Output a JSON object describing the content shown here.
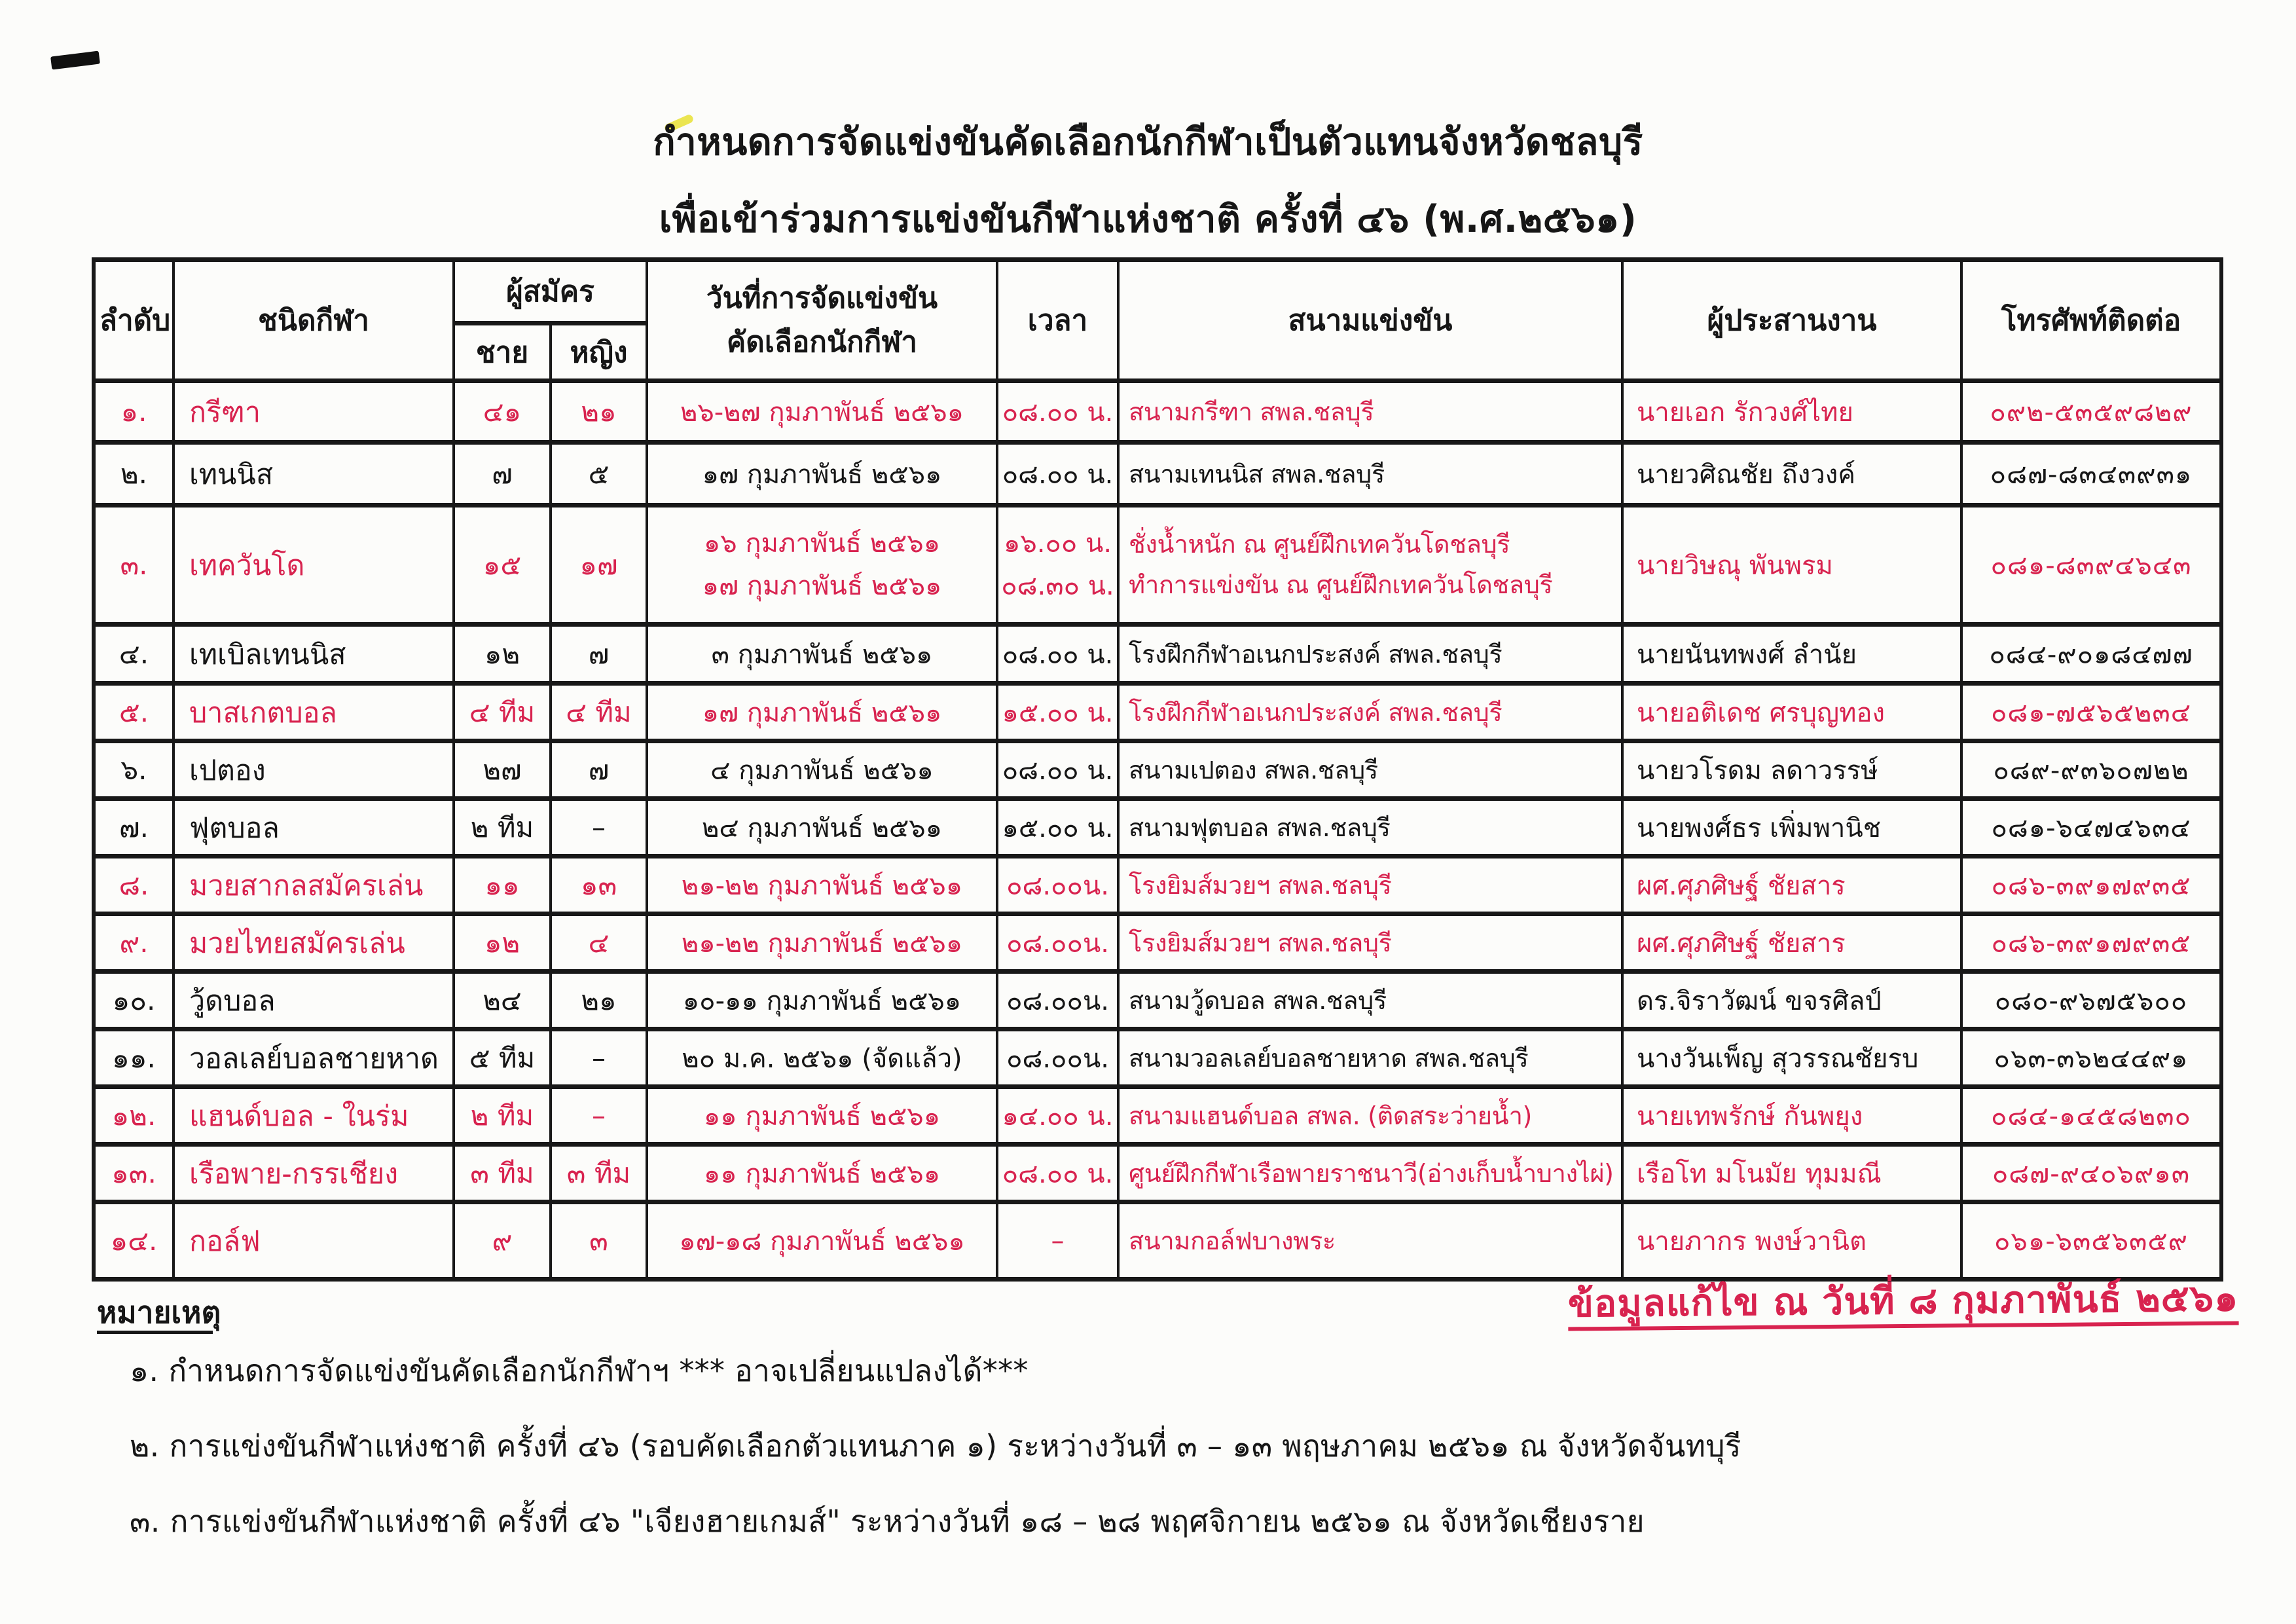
{
  "page": {
    "title_line1": "กำหนดการจัดแข่งขันคัดเลือกนักกีฬาเป็นตัวแทนจังหวัดชลบุรี",
    "title_line2": "เพื่อเข้าร่วมการแข่งขันกีฬาแห่งชาติ ครั้งที่ ๔๖ (พ.ศ.๒๕๖๑)"
  },
  "colors": {
    "accent_red": "#d8234f",
    "text_black": "#161616"
  },
  "table": {
    "headers": {
      "no": "ลำดับ",
      "sport": "ชนิดกีฬา",
      "applicants": "ผู้สมัคร",
      "male": "ชาย",
      "female": "หญิง",
      "date_line1": "วันที่การจัดแข่งขัน",
      "date_line2": "คัดเลือกนักกีฬา",
      "time": "เวลา",
      "venue": "สนามแข่งขัน",
      "coordinator": "ผู้ประสานงาน",
      "phone": "โทรศัพท์ติดต่อ"
    },
    "rows": [
      {
        "no": "๑.",
        "sport": "กรีฑา",
        "male": "๔๑",
        "female": "๒๑",
        "date": "๒๖-๒๗ กุมภาพันธ์ ๒๕๖๑",
        "time": "๐๘.๐๐ น.",
        "venue": "สนามกรีฑา สพล.ชลบุรี",
        "coordinator": "นายเอก รักวงศ์ไทย",
        "phone": "๐๙๒-๕๓๕๙๘๒๙",
        "color": "red"
      },
      {
        "no": "๒.",
        "sport": "เทนนิส",
        "male": "๗",
        "female": "๕",
        "date": "๑๗ กุมภาพันธ์ ๒๕๖๑",
        "time": "๐๘.๐๐ น.",
        "venue": "สนามเทนนิส สพล.ชลบุรี",
        "coordinator": "นายวศิณชัย  ถึงวงค์",
        "phone": "๐๘๗-๘๓๔๓๙๓๑",
        "color": "black"
      },
      {
        "no": "๓.",
        "sport": "เทควันโด",
        "male": "๑๕",
        "female": "๑๗",
        "date": [
          "๑๖ กุมภาพันธ์ ๒๕๖๑",
          "๑๗ กุมภาพันธ์ ๒๕๖๑"
        ],
        "time": [
          "๑๖.๐๐ น.",
          "๐๘.๓๐ น."
        ],
        "venue": [
          "ชั่งน้ำหนัก ณ ศูนย์ฝึกเทควันโดชลบุรี",
          "ทำการแข่งขัน ณ ศูนย์ฝึกเทควันโดชลบุรี"
        ],
        "coordinator": "นายวิษณุ  พันพรม",
        "phone": "๐๘๑-๘๓๙๔๖๔๓",
        "color": "red"
      },
      {
        "no": "๔.",
        "sport": "เทเบิลเทนนิส",
        "male": "๑๒",
        "female": "๗",
        "date": "๓ กุมภาพันธ์ ๒๕๖๑",
        "time": "๐๘.๐๐ น.",
        "venue": "โรงฝึกกีฬาอเนกประสงค์ สพล.ชลบุรี",
        "coordinator": "นายนันทพงศ์  ลำนัย",
        "phone": "๐๘๔-๙๐๑๘๔๗๗",
        "color": "black"
      },
      {
        "no": "๕.",
        "sport": "บาสเกตบอล",
        "male": "๔ ทีม",
        "female": "๔ ทีม",
        "date": "๑๗ กุมภาพันธ์ ๒๕๖๑",
        "time": "๑๕.๐๐ น.",
        "venue": "โรงฝึกกีฬาอเนกประสงค์ สพล.ชลบุรี",
        "coordinator": "นายอติเดช  ศรบุญทอง",
        "phone": "๐๘๑-๗๕๖๕๒๓๔",
        "color": "red"
      },
      {
        "no": "๖.",
        "sport": "เปตอง",
        "male": "๒๗",
        "female": "๗",
        "date": "๔ กุมภาพันธ์ ๒๕๖๑",
        "time": "๐๘.๐๐ น.",
        "venue": "สนามเปตอง สพล.ชลบุรี",
        "coordinator": "นายวโรดม  ลดาวรรษ์",
        "phone": "๐๘๙-๙๓๖๐๗๒๒",
        "color": "black"
      },
      {
        "no": "๗.",
        "sport": "ฟุตบอล",
        "male": "๒ ทีม",
        "female": "–",
        "date": "๒๔ กุมภาพันธ์ ๒๕๖๑",
        "time": "๑๕.๐๐ น.",
        "venue": "สนามฟุตบอล สพล.ชลบุรี",
        "coordinator": "นายพงศ์ธร  เพิ่มพานิช",
        "phone": "๐๘๑-๖๔๗๔๖๓๔",
        "color": "black"
      },
      {
        "no": "๘.",
        "sport": "มวยสากลสมัครเล่น",
        "male": "๑๑",
        "female": "๑๓",
        "date": "๒๑-๒๒ กุมภาพันธ์ ๒๕๖๑",
        "time": "๐๘.๐๐น.",
        "venue": "โรงยิมส์มวยฯ สพล.ชลบุรี",
        "coordinator": "ผศ.ศุภศิษฐ์  ชัยสาร",
        "phone": "๐๘๖-๓๙๑๗๙๓๕",
        "color": "red"
      },
      {
        "no": "๙.",
        "sport": "มวยไทยสมัครเล่น",
        "male": "๑๒",
        "female": "๔",
        "date": "๒๑-๒๒ กุมภาพันธ์ ๒๕๖๑",
        "time": "๐๘.๐๐น.",
        "venue": "โรงยิมส์มวยฯ สพล.ชลบุรี",
        "coordinator": "ผศ.ศุภศิษฐ์  ชัยสาร",
        "phone": "๐๘๖-๓๙๑๗๙๓๕",
        "color": "red"
      },
      {
        "no": "๑๐.",
        "sport": "วู้ดบอล",
        "male": "๒๔",
        "female": "๒๑",
        "date": "๑๐-๑๑ กุมภาพันธ์ ๒๕๖๑",
        "time": "๐๘.๐๐น.",
        "venue": "สนามวู้ดบอล สพล.ชลบุรี",
        "coordinator": "ดร.จิราวัฒน์  ขจรศิลป์",
        "phone": "๐๘๐-๙๖๗๕๖๐๐",
        "color": "black"
      },
      {
        "no": "๑๑.",
        "sport": "วอลเลย์บอลชายหาด",
        "male": "๕ ทีม",
        "female": "–",
        "date": "๒๐ ม.ค. ๒๕๖๑ (จัดแล้ว)",
        "time": "๐๘.๐๐น.",
        "venue": "สนามวอลเลย์บอลชายหาด สพล.ชลบุรี",
        "coordinator": "นางวันเพ็ญ  สุวรรณชัยรบ",
        "phone": "๐๖๓-๓๖๒๔๔๙๑",
        "color": "black"
      },
      {
        "no": "๑๒.",
        "sport": "แฮนด์บอล - ในร่ม",
        "male": "๒ ทีม",
        "female": "–",
        "date": "๑๑ กุมภาพันธ์ ๒๕๖๑",
        "time": "๑๔.๐๐ น.",
        "venue": "สนามแฮนด์บอล สพล. (ติดสระว่ายน้ำ)",
        "coordinator": "นายเทพรักษ์  กันพยุง",
        "phone": "๐๘๔-๑๔๕๘๒๓๐",
        "color": "red"
      },
      {
        "no": "๑๓.",
        "sport": "เรือพาย-กรรเชียง",
        "male": "๓ ทีม",
        "female": "๓ ทีม",
        "date": "๑๑ กุมภาพันธ์ ๒๕๖๑",
        "time": "๐๘.๐๐ น.",
        "venue": "ศูนย์ฝึกกีฬาเรือพายราชนาวี(อ่างเก็บน้ำบางไผ่)",
        "coordinator": "เรือโท มโนมัย  ทุมมณี",
        "phone": "๐๘๗-๙๔๐๖๙๑๓",
        "color": "red"
      },
      {
        "no": "๑๔.",
        "sport": "กอล์ฟ",
        "male": "๙",
        "female": "๓",
        "date": "๑๗-๑๘ กุมภาพันธ์ ๒๕๖๑",
        "time": "–",
        "venue": "สนามกอล์ฟบางพระ",
        "coordinator": "นายภากร  พงษ์วานิต",
        "phone": "๐๖๑-๖๓๕๖๓๕๙",
        "color": "red"
      }
    ]
  },
  "footer": {
    "revision_note": "ข้อมูลแก้ไข  ณ  วันที่  ๘  กุมภาพันธ์  ๒๕๖๑",
    "notes_heading": "หมายเหตุ",
    "notes": [
      "๑. กำหนดการจัดแข่งขันคัดเลือกนักกีฬาฯ   *** อาจเปลี่ยนแปลงได้***",
      "๒. การแข่งขันกีฬาแห่งชาติ ครั้งที่ ๔๖ (รอบคัดเลือกตัวแทนภาค ๑)  ระหว่างวันที่ ๓ – ๑๓  พฤษภาคม  ๒๕๖๑  ณ  จังหวัดจันทบุรี",
      "๓. การแข่งขันกีฬาแห่งชาติ ครั้งที่ ๔๖ \"เจียงฮายเกมส์\"   ระหว่างวันที่ ๑๘ – ๒๘  พฤศจิกายน  ๒๕๖๑  ณ  จังหวัดเชียงราย"
    ]
  }
}
